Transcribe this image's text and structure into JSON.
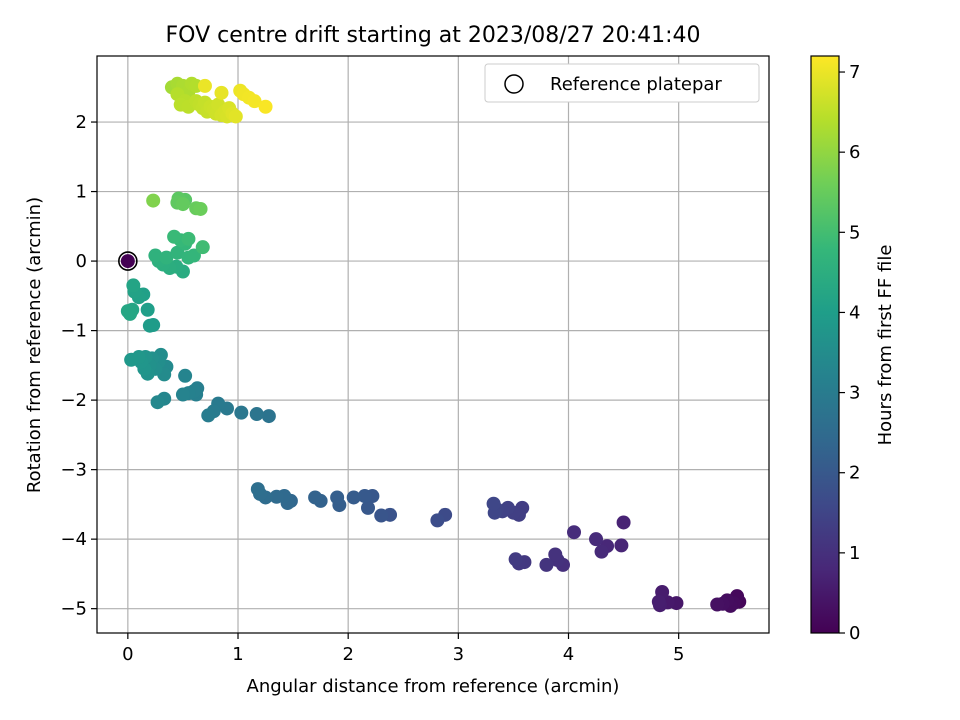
{
  "chart_data": {
    "type": "scatter",
    "title": "FOV centre drift starting at 2023/08/27 20:41:40",
    "xlabel": "Angular distance from reference (arcmin)",
    "ylabel": "Rotation from reference (arcmin)",
    "xlim": [
      -0.28,
      5.82
    ],
    "ylim": [
      -5.35,
      2.95
    ],
    "xticks": [
      0,
      1,
      2,
      3,
      4,
      5
    ],
    "yticks": [
      -5,
      -4,
      -3,
      -2,
      -1,
      0,
      1,
      2
    ],
    "xtick_labels": [
      "0",
      "1",
      "2",
      "3",
      "4",
      "5"
    ],
    "ytick_labels": [
      "−5",
      "−4",
      "−3",
      "−2",
      "−1",
      "0",
      "1",
      "2"
    ],
    "grid": true,
    "legend": {
      "placement": "top-right",
      "entries": [
        "Reference platepar"
      ]
    },
    "reference_point": {
      "x": 0,
      "y": 0,
      "label": "Reference platepar"
    },
    "colorbar": {
      "label": "Hours from first FF file",
      "range": [
        0,
        7.2
      ],
      "ticks": [
        0,
        1,
        2,
        3,
        4,
        5,
        6,
        7
      ],
      "tick_labels": [
        "0",
        "1",
        "2",
        "3",
        "4",
        "5",
        "6",
        "7"
      ],
      "colormap": "viridis"
    },
    "colormap_stops": [
      "#440154",
      "#482878",
      "#3e4989",
      "#31688e",
      "#26828e",
      "#1f9e89",
      "#35b779",
      "#6ece58",
      "#b5de2b",
      "#fde725"
    ],
    "series": [
      {
        "points": [
          [
            5.55,
            -4.9,
            0.1
          ],
          [
            5.53,
            -4.82,
            0.15
          ],
          [
            5.5,
            -4.92,
            0.2
          ],
          [
            5.47,
            -4.96,
            0.22
          ],
          [
            5.44,
            -4.88,
            0.25
          ],
          [
            5.4,
            -4.93,
            0.28
          ],
          [
            5.35,
            -4.94,
            0.32
          ],
          [
            4.98,
            -4.92,
            0.45
          ],
          [
            4.9,
            -4.91,
            0.5
          ],
          [
            4.85,
            -4.76,
            0.55
          ],
          [
            4.83,
            -4.95,
            0.58
          ],
          [
            4.82,
            -4.9,
            0.6
          ],
          [
            4.5,
            -3.76,
            0.7
          ],
          [
            4.48,
            -4.09,
            0.75
          ],
          [
            4.35,
            -4.1,
            0.8
          ],
          [
            4.3,
            -4.18,
            0.85
          ],
          [
            4.25,
            -4.0,
            0.88
          ],
          [
            4.05,
            -3.9,
            0.92
          ],
          [
            3.95,
            -4.37,
            0.98
          ],
          [
            3.9,
            -4.3,
            1.02
          ],
          [
            3.88,
            -4.22,
            1.05
          ],
          [
            3.8,
            -4.37,
            1.1
          ],
          [
            3.6,
            -4.33,
            1.18
          ],
          [
            3.55,
            -4.35,
            1.22
          ],
          [
            3.52,
            -4.29,
            1.25
          ],
          [
            3.58,
            -3.55,
            1.3
          ],
          [
            3.55,
            -3.65,
            1.33
          ],
          [
            3.5,
            -3.62,
            1.36
          ],
          [
            3.45,
            -3.55,
            1.4
          ],
          [
            3.4,
            -3.6,
            1.44
          ],
          [
            3.35,
            -3.57,
            1.48
          ],
          [
            3.33,
            -3.62,
            1.52
          ],
          [
            3.32,
            -3.49,
            1.55
          ],
          [
            2.88,
            -3.65,
            1.65
          ],
          [
            2.81,
            -3.73,
            1.7
          ],
          [
            2.38,
            -3.65,
            1.85
          ],
          [
            2.3,
            -3.66,
            1.9
          ],
          [
            2.22,
            -3.38,
            1.95
          ],
          [
            2.18,
            -3.55,
            1.98
          ],
          [
            2.15,
            -3.38,
            2.02
          ],
          [
            2.05,
            -3.4,
            2.08
          ],
          [
            1.92,
            -3.51,
            2.15
          ],
          [
            1.9,
            -3.4,
            2.18
          ],
          [
            1.75,
            -3.45,
            2.25
          ],
          [
            1.7,
            -3.4,
            2.28
          ],
          [
            1.48,
            -3.45,
            2.38
          ],
          [
            1.45,
            -3.48,
            2.42
          ],
          [
            1.42,
            -3.38,
            2.46
          ],
          [
            1.35,
            -3.39,
            2.5
          ],
          [
            1.25,
            -3.4,
            2.55
          ],
          [
            1.2,
            -3.35,
            2.58
          ],
          [
            1.18,
            -3.28,
            2.62
          ],
          [
            1.28,
            -2.23,
            2.75
          ],
          [
            1.17,
            -2.2,
            2.8
          ],
          [
            1.03,
            -2.18,
            2.85
          ],
          [
            0.9,
            -2.12,
            2.92
          ],
          [
            0.82,
            -2.05,
            2.95
          ],
          [
            0.78,
            -2.16,
            2.98
          ],
          [
            0.73,
            -2.22,
            3.02
          ],
          [
            0.63,
            -1.83,
            3.08
          ],
          [
            0.62,
            -1.92,
            3.12
          ],
          [
            0.6,
            -1.87,
            3.15
          ],
          [
            0.55,
            -1.9,
            3.18
          ],
          [
            0.5,
            -1.92,
            3.22
          ],
          [
            0.52,
            -1.65,
            3.26
          ],
          [
            0.33,
            -1.98,
            3.32
          ],
          [
            0.27,
            -2.03,
            3.36
          ],
          [
            0.35,
            -1.52,
            3.42
          ],
          [
            0.33,
            -1.63,
            3.46
          ],
          [
            0.3,
            -1.35,
            3.5
          ],
          [
            0.28,
            -1.45,
            3.53
          ],
          [
            0.25,
            -1.55,
            3.56
          ],
          [
            0.22,
            -1.4,
            3.6
          ],
          [
            0.2,
            -1.5,
            3.63
          ],
          [
            0.18,
            -1.62,
            3.66
          ],
          [
            0.16,
            -1.38,
            3.7
          ],
          [
            0.15,
            -1.55,
            3.73
          ],
          [
            0.12,
            -1.45,
            3.76
          ],
          [
            0.1,
            -1.38,
            3.8
          ],
          [
            0.03,
            -1.42,
            3.84
          ],
          [
            0.23,
            -0.92,
            3.92
          ],
          [
            0.2,
            -0.93,
            3.95
          ],
          [
            0.18,
            -0.7,
            4.02
          ],
          [
            0.14,
            -0.48,
            4.06
          ],
          [
            0.1,
            -0.52,
            4.1
          ],
          [
            0.06,
            -0.44,
            4.14
          ],
          [
            0.05,
            -0.35,
            4.18
          ],
          [
            0.04,
            -0.7,
            4.21
          ],
          [
            0.02,
            -0.76,
            4.24
          ],
          [
            0.0,
            -0.72,
            4.27
          ],
          [
            0.5,
            -0.15,
            4.4
          ],
          [
            0.44,
            -0.08,
            4.44
          ],
          [
            0.38,
            -0.1,
            4.48
          ],
          [
            0.32,
            -0.05,
            4.52
          ],
          [
            0.28,
            0.0,
            4.56
          ],
          [
            0.25,
            0.08,
            4.6
          ],
          [
            0.35,
            0.05,
            4.64
          ],
          [
            0.45,
            0.12,
            4.68
          ],
          [
            0.55,
            0.05,
            4.72
          ],
          [
            0.6,
            0.08,
            4.75
          ],
          [
            0.52,
            0.25,
            4.78
          ],
          [
            0.48,
            0.3,
            4.82
          ],
          [
            0.42,
            0.35,
            4.86
          ],
          [
            0.55,
            0.32,
            4.9
          ],
          [
            0.68,
            0.2,
            4.95
          ],
          [
            0.52,
            0.88,
            5.3
          ],
          [
            0.46,
            0.9,
            5.35
          ],
          [
            0.45,
            0.84,
            5.4
          ],
          [
            0.5,
            0.82,
            5.45
          ],
          [
            0.62,
            0.76,
            5.5
          ],
          [
            0.66,
            0.75,
            5.55
          ],
          [
            0.23,
            0.87,
            5.8
          ],
          [
            0.4,
            2.5,
            6.2
          ],
          [
            0.45,
            2.55,
            6.25
          ],
          [
            0.5,
            2.52,
            6.3
          ],
          [
            0.55,
            2.44,
            6.32
          ],
          [
            0.58,
            2.55,
            6.35
          ],
          [
            0.62,
            2.52,
            6.38
          ],
          [
            0.45,
            2.4,
            6.4
          ],
          [
            0.52,
            2.3,
            6.43
          ],
          [
            0.48,
            2.25,
            6.45
          ],
          [
            0.55,
            2.22,
            6.48
          ],
          [
            0.62,
            2.3,
            6.5
          ],
          [
            0.65,
            2.25,
            6.53
          ],
          [
            0.68,
            2.2,
            6.55
          ],
          [
            0.7,
            2.28,
            6.58
          ],
          [
            0.72,
            2.15,
            6.6
          ],
          [
            0.75,
            2.22,
            6.63
          ],
          [
            0.78,
            2.18,
            6.65
          ],
          [
            0.8,
            2.12,
            6.68
          ],
          [
            0.82,
            2.25,
            6.7
          ],
          [
            0.85,
            2.1,
            6.73
          ],
          [
            0.88,
            2.15,
            6.75
          ],
          [
            0.9,
            2.08,
            6.78
          ],
          [
            0.92,
            2.2,
            6.8
          ],
          [
            0.95,
            2.12,
            6.85
          ],
          [
            0.98,
            2.08,
            6.9
          ],
          [
            0.85,
            2.42,
            6.95
          ],
          [
            0.7,
            2.52,
            7.0
          ],
          [
            1.02,
            2.45,
            7.02
          ],
          [
            1.05,
            2.4,
            7.05
          ],
          [
            1.1,
            2.35,
            7.08
          ],
          [
            1.15,
            2.3,
            7.1
          ],
          [
            1.25,
            2.22,
            7.15
          ]
        ]
      }
    ]
  }
}
